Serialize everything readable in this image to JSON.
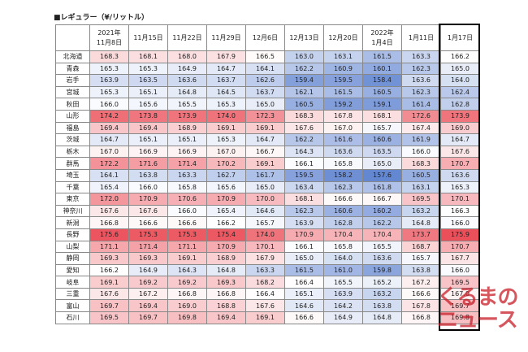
{
  "header": {
    "title": "■レギュラー（¥/リットル）"
  },
  "table": {
    "columns": [
      "2021年\n11月8日",
      "11月15日",
      "11月22日",
      "11月29日",
      "12月6日",
      "12月13日",
      "12月20日",
      "2022年\n1月4日",
      "1月11日",
      "1月17日"
    ],
    "rows": [
      {
        "label": "北海道",
        "values": [
          168.3,
          168.1,
          168.0,
          167.9,
          166.5,
          163.0,
          163.1,
          161.5,
          163.3,
          166.2
        ]
      },
      {
        "label": "青森",
        "values": [
          165.3,
          165.3,
          164.9,
          164.7,
          164.1,
          162.2,
          160.9,
          160.1,
          162.3,
          165.0
        ]
      },
      {
        "label": "岩手",
        "values": [
          163.9,
          163.5,
          163.6,
          163.7,
          162.6,
          159.4,
          159.5,
          158.4,
          163.6,
          164.0
        ]
      },
      {
        "label": "宮城",
        "values": [
          165.3,
          165.1,
          164.8,
          164.5,
          163.7,
          162.1,
          161.5,
          160.5,
          162.3,
          162.4
        ]
      },
      {
        "label": "秋田",
        "values": [
          166.0,
          165.6,
          165.5,
          165.3,
          165.0,
          160.5,
          159.2,
          159.1,
          161.4,
          162.8
        ]
      },
      {
        "label": "山形",
        "values": [
          174.2,
          173.8,
          173.9,
          174.0,
          172.3,
          168.3,
          167.8,
          168.1,
          172.6,
          173.9
        ]
      },
      {
        "label": "福島",
        "values": [
          169.4,
          169.4,
          168.9,
          169.1,
          169.1,
          167.6,
          167.0,
          165.7,
          167.4,
          169.0
        ]
      },
      {
        "label": "茨城",
        "values": [
          164.7,
          165.1,
          165.1,
          165.3,
          164.7,
          162.2,
          161.6,
          160.6,
          161.9,
          164.7
        ]
      },
      {
        "label": "栃木",
        "values": [
          167.0,
          166.9,
          166.9,
          167.0,
          166.7,
          164.3,
          163.6,
          163.5,
          166.0,
          167.6
        ]
      },
      {
        "label": "群馬",
        "values": [
          172.2,
          171.6,
          171.4,
          170.2,
          169.1,
          166.1,
          165.8,
          165.0,
          168.3,
          170.7
        ]
      },
      {
        "label": "埼玉",
        "values": [
          164.1,
          163.8,
          163.3,
          162.7,
          161.7,
          159.5,
          158.2,
          157.6,
          160.5,
          163.6
        ]
      },
      {
        "label": "千葉",
        "values": [
          165.4,
          166.0,
          165.8,
          165.6,
          165.0,
          163.4,
          162.3,
          161.8,
          163.1,
          165.3
        ]
      },
      {
        "label": "東京",
        "values": [
          172.0,
          170.9,
          170.6,
          170.9,
          170.0,
          168.1,
          166.6,
          166.7,
          169.5,
          170.1
        ]
      },
      {
        "label": "神奈川",
        "values": [
          167.6,
          167.6,
          166.0,
          165.4,
          164.6,
          162.3,
          160.6,
          160.2,
          163.2,
          166.3
        ]
      },
      {
        "label": "新潟",
        "values": [
          166.8,
          166.6,
          166.6,
          166.2,
          165.7,
          163.9,
          162.8,
          162.2,
          164.8,
          166.0
        ]
      },
      {
        "label": "長野",
        "values": [
          175.6,
          175.3,
          175.3,
          175.4,
          174.0,
          170.9,
          170.4,
          170.4,
          173.7,
          175.9
        ]
      },
      {
        "label": "山梨",
        "values": [
          171.1,
          171.4,
          171.1,
          170.9,
          170.1,
          166.1,
          165.8,
          165.5,
          168.7,
          170.7
        ]
      },
      {
        "label": "静岡",
        "values": [
          169.3,
          169.3,
          169.1,
          168.9,
          167.9,
          165.0,
          164.0,
          163.6,
          165.7,
          167.7
        ]
      },
      {
        "label": "愛知",
        "values": [
          166.2,
          164.9,
          164.3,
          164.8,
          163.3,
          161.5,
          161.0,
          159.8,
          163.8,
          166.0
        ]
      },
      {
        "label": "岐阜",
        "values": [
          169.1,
          169.2,
          169.2,
          169.3,
          168.2,
          166.4,
          165.5,
          165.2,
          167.2,
          169.5
        ]
      },
      {
        "label": "三重",
        "values": [
          167.6,
          167.2,
          166.8,
          166.8,
          166.4,
          165.1,
          163.9,
          163.2,
          166.6,
          167.0
        ]
      },
      {
        "label": "富山",
        "values": [
          169.7,
          169.4,
          169.0,
          168.8,
          167.6,
          164.6,
          164.2,
          163.8,
          167.8,
          169.7
        ]
      },
      {
        "label": "石川",
        "values": [
          169.5,
          169.7,
          169.8,
          169.4,
          169.1,
          166.6,
          164.9,
          164.8,
          166.8,
          169.8
        ]
      }
    ]
  },
  "watermark": "くるまのニュース"
}
